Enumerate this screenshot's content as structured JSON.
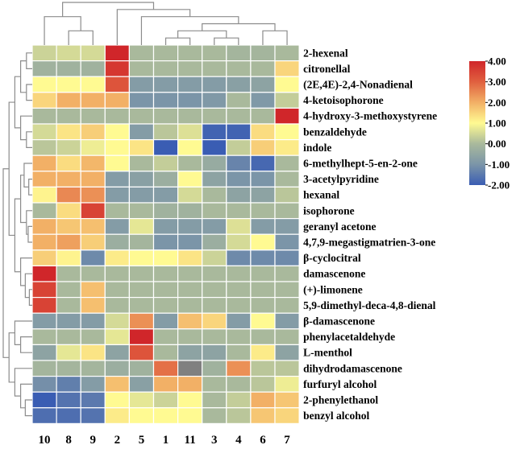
{
  "chart_data": {
    "type": "heatmap",
    "title": "",
    "columns": [
      "10",
      "8",
      "9",
      "2",
      "5",
      "1",
      "11",
      "3",
      "4",
      "6",
      "7"
    ],
    "rows": [
      "2-hexenal",
      "citronellal",
      "(2E,4E)-2,4-Nonadienal",
      "4-ketoisophorone",
      "4-hydroxy-3-methoxystyrene",
      "benzaldehyde",
      "indole",
      "6-methylhept-5-en-2-one",
      "3-acetylpyridine",
      "hexanal",
      "isophorone",
      "geranyl acetone",
      "4,7,9-megastigmatrien-3-one",
      "β-cyclocitral",
      "damascenone",
      "(+)-limonene",
      "5,9-dimethyl-deca-4,8-dienal",
      "β-damascenone",
      "phenylacetaldehyde",
      "L-menthol",
      "dihydrodamascenone",
      "furfuryl alcohol",
      "2-phenylethanol",
      "benzyl alcohol"
    ],
    "values": [
      [
        0.4,
        0.5,
        0.5,
        4,
        0,
        0,
        0,
        0,
        -0.1,
        -0.1,
        0
      ],
      [
        -0.2,
        -0.2,
        -0.2,
        3.7,
        0,
        0,
        0,
        0,
        0,
        0,
        1.5
      ],
      [
        1,
        1,
        1,
        3.2,
        -0.8,
        -0.8,
        -0.8,
        -0.8,
        -0.7,
        -0.6,
        1
      ],
      [
        1.5,
        2,
        2,
        2,
        -1,
        -1,
        -1,
        -0.9,
        0,
        -0.9,
        0.3
      ],
      [
        0,
        0,
        0,
        0,
        0,
        0,
        0,
        0,
        0,
        0,
        4
      ],
      [
        0.5,
        1.3,
        1.6,
        1,
        -0.8,
        0.2,
        0.6,
        -1.9,
        -1.9,
        1.4,
        1
      ],
      [
        0.2,
        0.4,
        0.8,
        1,
        1.3,
        -2,
        1,
        -2,
        0.3,
        1.6,
        1.2
      ],
      [
        2,
        1.4,
        1.9,
        1,
        0,
        0.3,
        0,
        -0.4,
        -1.3,
        -1.8,
        0
      ],
      [
        2,
        2,
        2,
        -0.8,
        -0.7,
        -0.3,
        1,
        -0.6,
        -1,
        -1,
        0
      ],
      [
        1.1,
        2.5,
        2.4,
        -0.8,
        -0.8,
        -0.8,
        0.5,
        0,
        -0.6,
        -0.6,
        0.2
      ],
      [
        0,
        1.4,
        3.5,
        0,
        0,
        -0.2,
        -0.2,
        0,
        0,
        0,
        0
      ],
      [
        2,
        1.7,
        1.8,
        -0.8,
        0.7,
        -0.8,
        -0.8,
        -0.8,
        0.6,
        -0.8,
        -0.8
      ],
      [
        2,
        2.2,
        1.6,
        -0.3,
        -0.1,
        -1,
        -1,
        -0.3,
        0.5,
        1,
        -1
      ],
      [
        1.6,
        1.1,
        -1.2,
        1.2,
        1,
        1,
        1.3,
        0.4,
        -1.2,
        -1.2,
        -1.2
      ],
      [
        4,
        0,
        0,
        0,
        0,
        0,
        0,
        0,
        0,
        0,
        0
      ],
      [
        3.5,
        0,
        1.8,
        0,
        0,
        0,
        0,
        0,
        0,
        0,
        0
      ],
      [
        3.5,
        0,
        1.8,
        0,
        0,
        0,
        0,
        0,
        0,
        0,
        0
      ],
      [
        -0.8,
        -0.8,
        -0.8,
        0.5,
        2.4,
        -0.8,
        1.8,
        1.5,
        -0.8,
        1,
        -0.8
      ],
      [
        0,
        0,
        0,
        0.7,
        4,
        0,
        0,
        0,
        0,
        0,
        0
      ],
      [
        -0.6,
        0.7,
        1.3,
        -0.6,
        3.2,
        0,
        -0.6,
        -0.6,
        0,
        1.2,
        -0.6
      ],
      [
        -0.1,
        -0.1,
        -0.1,
        -0.3,
        -0.2,
        2.8,
        null,
        -0.2,
        2.4,
        0.2,
        0.2
      ],
      [
        -1.1,
        -1.4,
        -0.8,
        1.8,
        -0.7,
        2,
        2,
        0,
        0,
        0.2,
        0.8
      ],
      [
        -2,
        -1.6,
        -1.5,
        1,
        0.7,
        0.4,
        1,
        0,
        0.3,
        2,
        1.7
      ],
      [
        -1.7,
        -1.7,
        -1.6,
        1.2,
        1,
        1,
        1,
        0,
        0.2,
        1.7,
        1.5
      ]
    ],
    "color_range": [
      -2,
      4
    ],
    "colorbar_ticks": [
      "4.00",
      "3.00",
      "2.00",
      "1.00",
      "0.00",
      "-1.00",
      "-2.00"
    ],
    "colorbar_tick_values": [
      4,
      3,
      2,
      1,
      0,
      -1,
      -2
    ],
    "colorscale": [
      {
        "v": -2,
        "color": "#3a5db3"
      },
      {
        "v": -1,
        "color": "#7b95a8"
      },
      {
        "v": 0,
        "color": "#a9b99c"
      },
      {
        "v": 1,
        "color": "#fffa92"
      },
      {
        "v": 2,
        "color": "#f2b066"
      },
      {
        "v": 3,
        "color": "#e0603f"
      },
      {
        "v": 4,
        "color": "#d0262a"
      }
    ],
    "missing_color": "#808080",
    "col_dendrogram": [
      [
        [
          0
        ],
        [
          [
            1
          ],
          [
            2
          ],
          2
        ],
        4
      ],
      [
        [
          3
        ],
        [
          [
            [
              [
                [
                  5
                ],
                [
                  6
                ],
                1
              ],
              [
                [
                  7
                ],
                [
                  8
                ],
                1
              ],
              2
            ],
            [
              [
                9
              ],
              [
                10
              ],
              2
            ],
            3
          ],
          [
            4
          ],
          4
        ],
        5
      ],
      6
    ],
    "row_dendrogram": [
      [
        [
          [
            [
              [
                0
              ],
              [
                1
              ],
              1
            ],
            [
              [
                2
              ],
              [
                3
              ],
              1
            ],
            2
          ],
          [
            [
              4
            ],
            [
              [
                5
              ],
              [
                6
              ],
              1
            ],
            2
          ],
          3
        ],
        [
          [
            [
              [
                7
              ],
              [
                [
                  8
                ],
                [
                  9
                ],
                0.6
              ],
              1.4
            ],
            [
              [
                10
              ],
              [
                [
                  11
                ],
                [
                  12
                ],
                0.7
              ],
              1
            ],
            2
          ],
          [
            [
              13
            ],
            [
              [
                14
              ],
              [
                [
                  15
                ],
                [
                  16
                ],
                0.5
              ],
              1.2
            ],
            2
          ],
          3
        ],
        4
      ],
      [
        [
          [
            17
          ],
          [
            [
              18
            ],
            [
              19
            ],
            2
          ],
          3
        ],
        [
          [
            20
          ],
          [
            [
              21
            ],
            [
              [
                22
              ],
              [
                23
              ],
              1.2
            ],
            2
          ],
          3
        ],
        4
      ],
      5
    ]
  }
}
